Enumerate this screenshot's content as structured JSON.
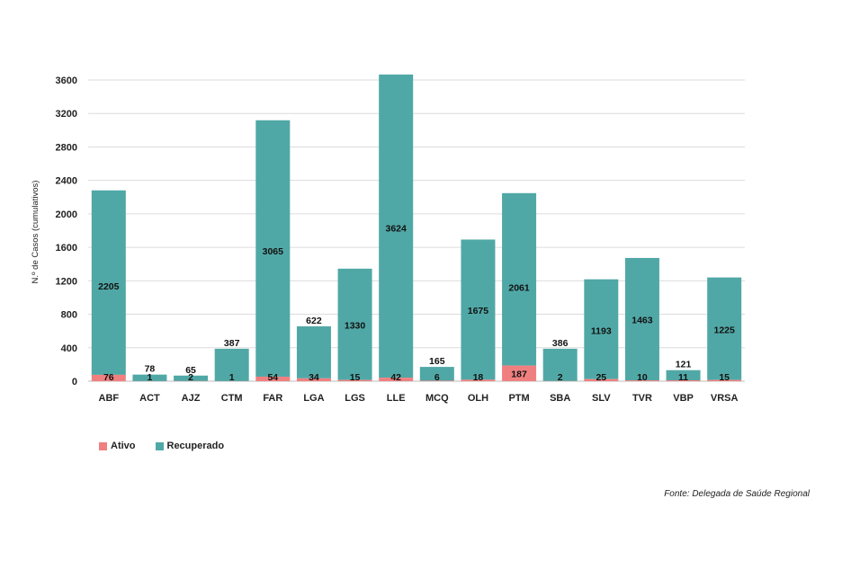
{
  "chart_data": {
    "type": "bar",
    "stacked": true,
    "title": "",
    "xlabel": "",
    "ylabel": "N.º de Casos (cumulativos)",
    "ylim": [
      0,
      3600
    ],
    "yticks": [
      0,
      400,
      800,
      1200,
      1600,
      2000,
      2400,
      2800,
      3200,
      3600
    ],
    "grid": true,
    "categories": [
      "ABF",
      "ACT",
      "AJZ",
      "CTM",
      "FAR",
      "LGA",
      "LGS",
      "LLE",
      "MCQ",
      "OLH",
      "PTM",
      "SBA",
      "SLV",
      "TVR",
      "VBP",
      "VRSA"
    ],
    "series": [
      {
        "name": "Ativo",
        "color": "#f08080",
        "values": [
          76,
          1,
          2,
          1,
          54,
          34,
          15,
          42,
          6,
          18,
          187,
          2,
          25,
          10,
          11,
          15
        ]
      },
      {
        "name": "Recuperado",
        "color": "#50a8a6",
        "values": [
          2205,
          78,
          65,
          387,
          3065,
          622,
          1330,
          3624,
          165,
          1675,
          2061,
          386,
          1193,
          1463,
          121,
          1225
        ]
      }
    ],
    "legend_position": "bottom-left",
    "source": "Fonte: Delegada de Saúde Regional"
  }
}
